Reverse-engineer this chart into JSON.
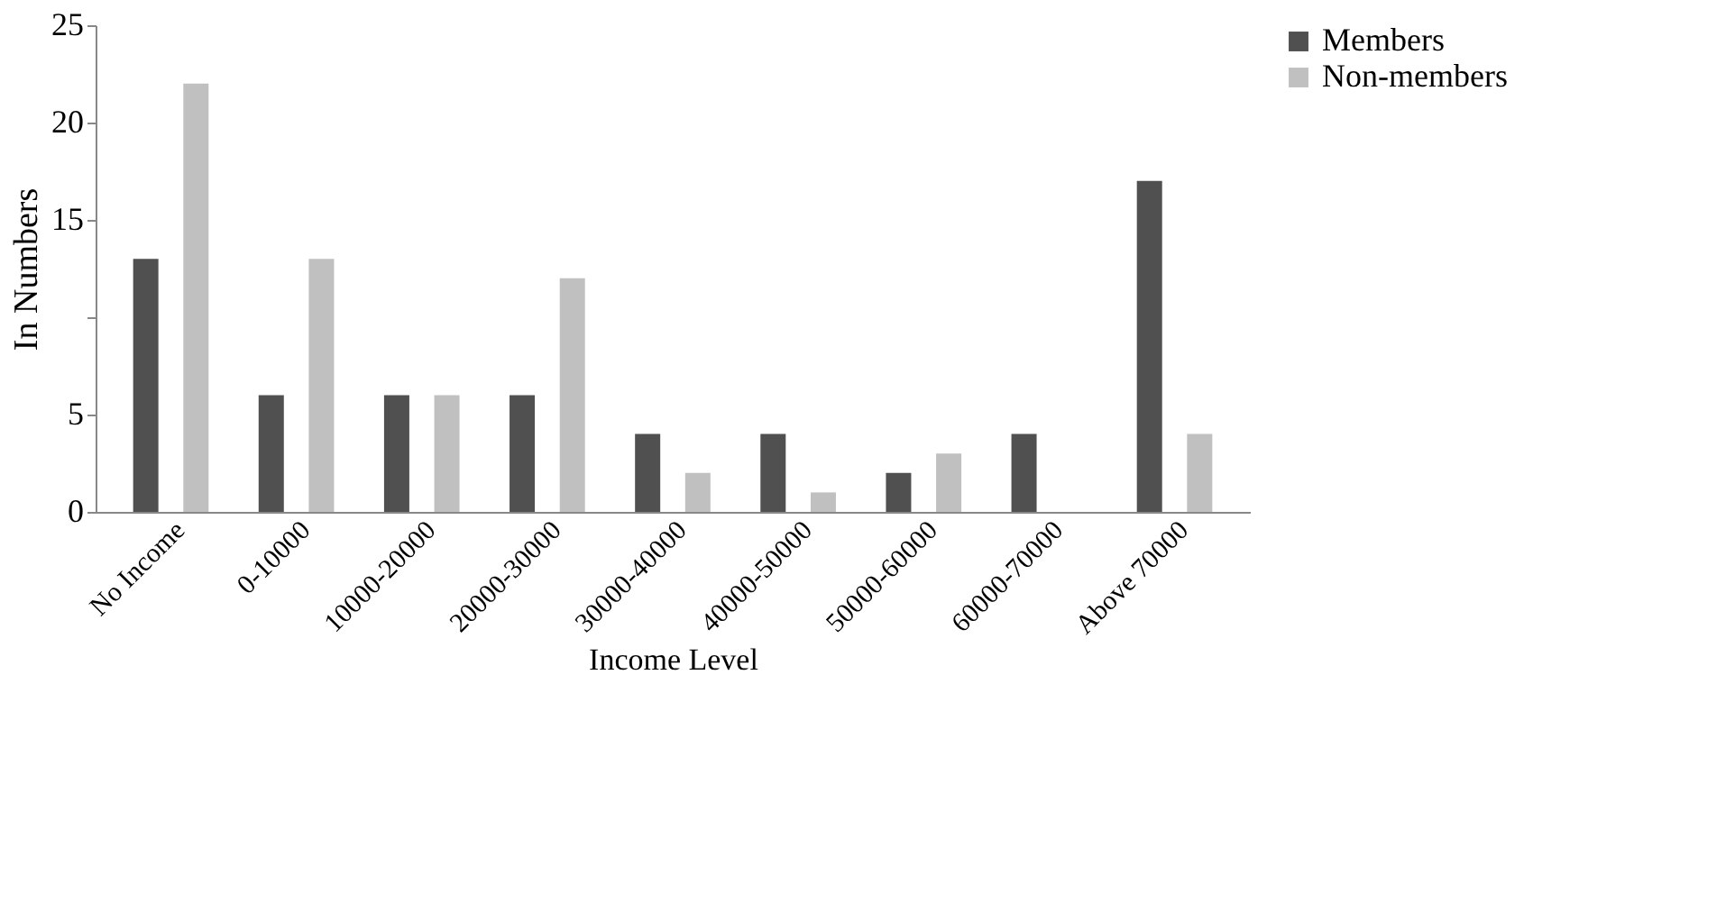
{
  "chart_data": {
    "type": "bar",
    "xlabel": "Income Level",
    "ylabel": "In Numbers",
    "categories": [
      "No Income",
      "0-10000",
      "10000-20000",
      "20000-30000",
      "30000-40000",
      "40000-50000",
      "50000-60000",
      "60000-70000",
      "Above 70000"
    ],
    "series": [
      {
        "name": "Members",
        "color": "#505050",
        "values": [
          13,
          6,
          6,
          6,
          4,
          4,
          2,
          4,
          17
        ]
      },
      {
        "name": "Non-members",
        "color": "#c0c0c0",
        "values": [
          22,
          13,
          6,
          12,
          2,
          1,
          3,
          0,
          4
        ]
      }
    ],
    "ylim": [
      0,
      25
    ],
    "yticks": [
      0,
      5,
      {
        "value": 10,
        "label": null
      },
      15,
      20,
      25
    ],
    "grid": false,
    "legend": "right"
  }
}
